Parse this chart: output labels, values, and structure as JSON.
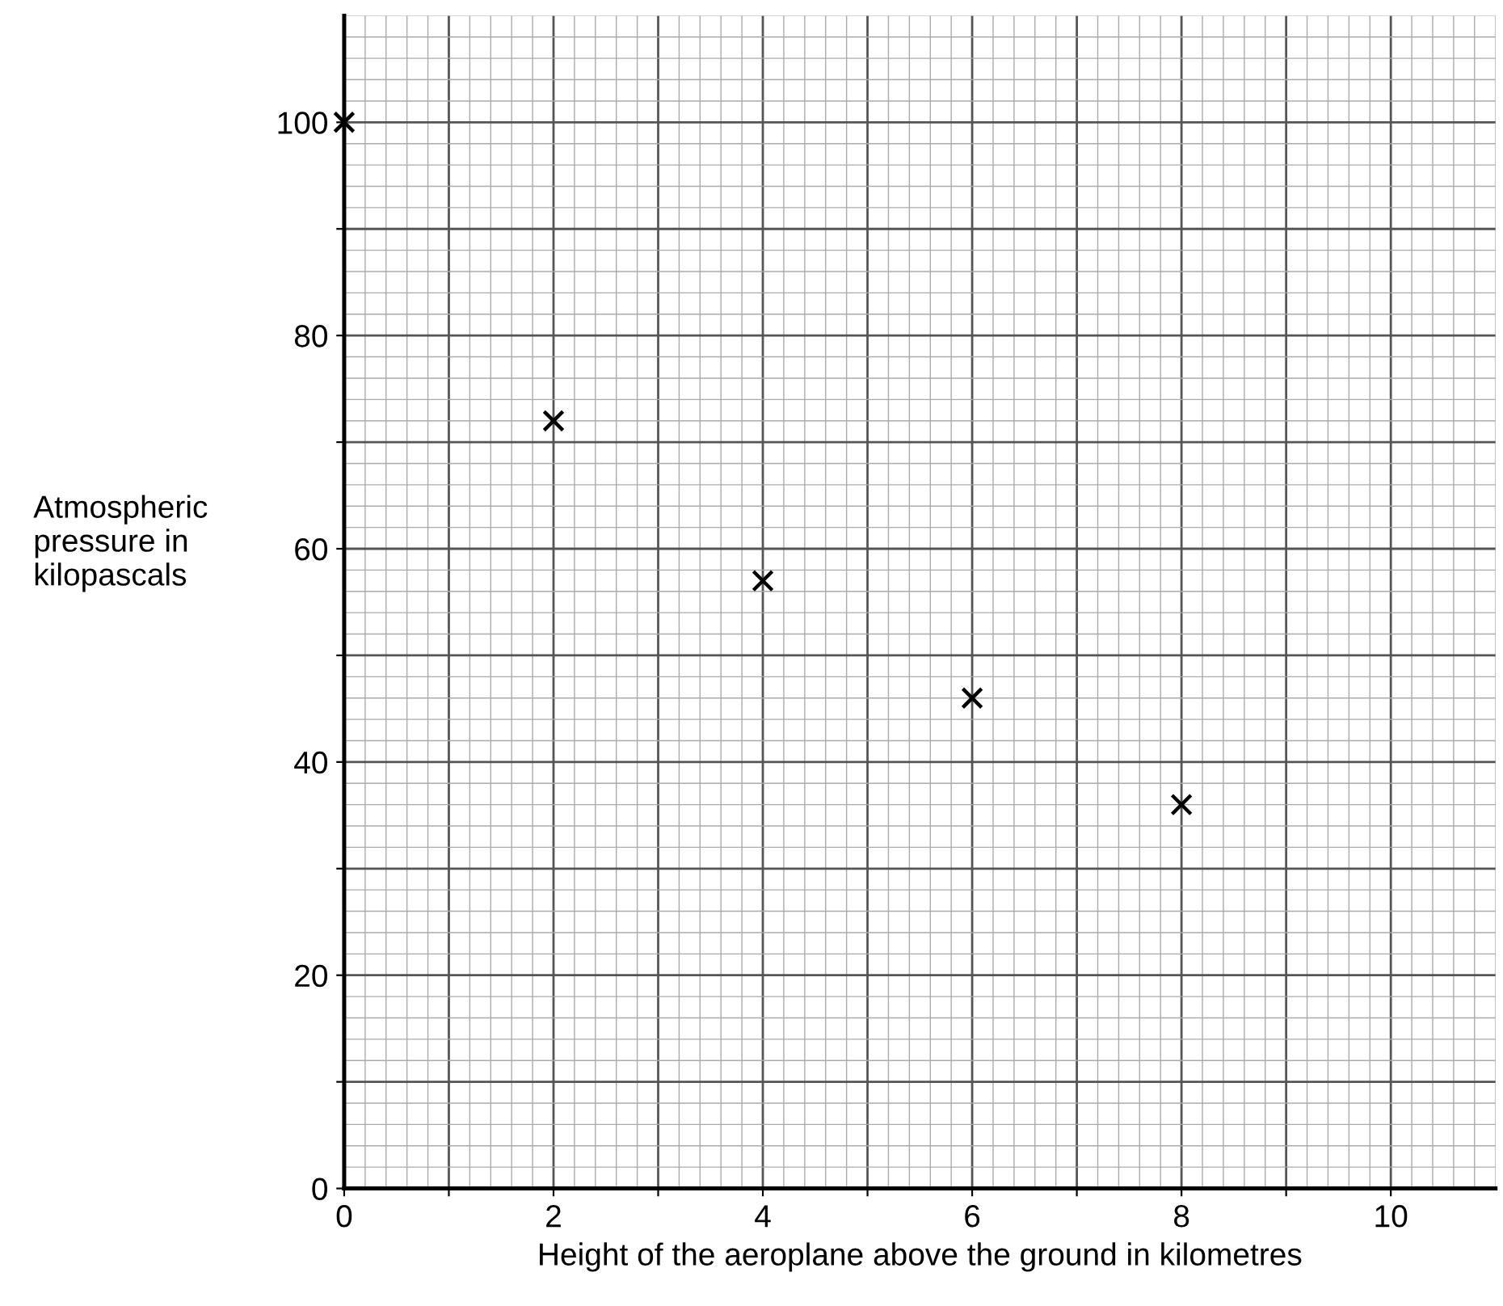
{
  "chart_data": {
    "type": "scatter",
    "xlabel": "Height of the aeroplane above the ground in kilometres",
    "ylabel": "Atmospheric\npressure in\nkilopascals",
    "x": [
      0,
      2,
      4,
      6,
      8
    ],
    "series": [
      {
        "color": "#000000",
        "values": [
          100,
          72,
          57,
          46,
          36
        ]
      }
    ],
    "marker": "cross",
    "grid": true,
    "xlim": [
      0,
      11
    ],
    "ylim": [
      0,
      110
    ],
    "xticks": [
      0,
      {
        "value": 1,
        "label": null
      },
      2,
      {
        "value": 3,
        "label": null
      },
      4,
      {
        "value": 5,
        "label": null
      },
      6,
      {
        "value": 7,
        "label": null
      },
      8,
      {
        "value": 9,
        "label": null
      },
      10
    ],
    "yticks": [
      0,
      {
        "value": 10,
        "label": null
      },
      20,
      {
        "value": 30,
        "label": null
      },
      40,
      {
        "value": 50,
        "label": null
      },
      60,
      {
        "value": 70,
        "label": null
      },
      80,
      {
        "value": 90,
        "label": null
      },
      100
    ]
  }
}
